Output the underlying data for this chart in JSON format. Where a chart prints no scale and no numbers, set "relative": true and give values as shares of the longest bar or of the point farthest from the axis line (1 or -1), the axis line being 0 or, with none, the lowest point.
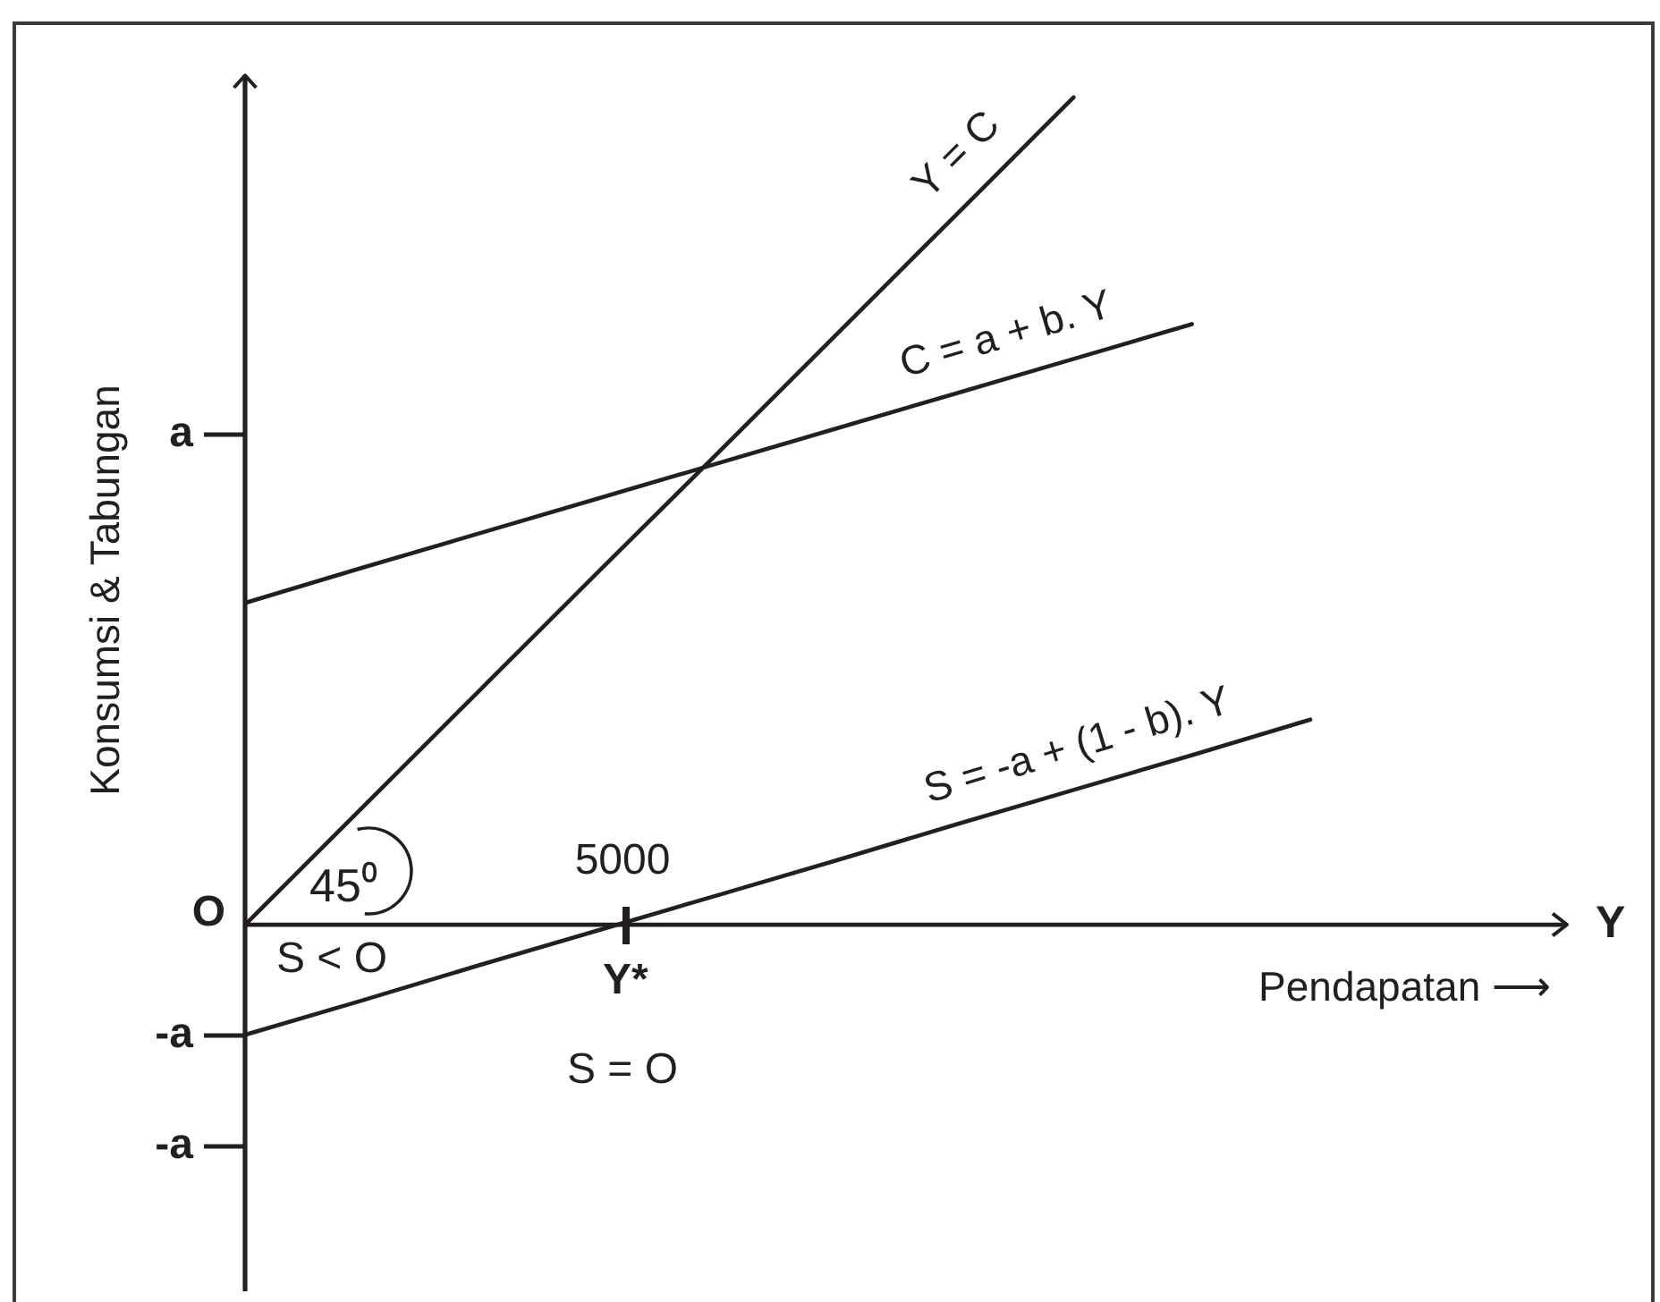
{
  "chart_data": {
    "type": "line",
    "relative": true,
    "xlabel": "Pendapatan ⟶",
    "ylabel": "Konsumsi & Tabungan",
    "categories": [
      null,
      null,
      null,
      null,
      null,
      null,
      null,
      null,
      null,
      null
    ],
    "series": [
      {
        "name": "Y = C",
        "color": "#231f20",
        "values": [
          0,
          0.143,
          0.286,
          0.429,
          0.571,
          0.714,
          0.857,
          1,
          null,
          null
        ]
      },
      {
        "name": "C = a + b. Y",
        "color": "#231f20",
        "values": [
          0.389,
          0.432,
          0.474,
          0.516,
          0.558,
          0.6,
          0.642,
          0.684,
          0.726,
          null
        ]
      },
      {
        "name": "S = -a + (1 - b). Y",
        "color": "#231f20",
        "values": [
          -0.133,
          -0.091,
          -0.048,
          -0.006,
          0.036,
          0.078,
          0.121,
          0.163,
          0.205,
          0.248
        ]
      }
    ],
    "annotations": [
      "a",
      "O",
      "-a",
      "-a",
      "Y*",
      "5000",
      "45⁰",
      "S < O",
      "S = O",
      "Y"
    ]
  }
}
